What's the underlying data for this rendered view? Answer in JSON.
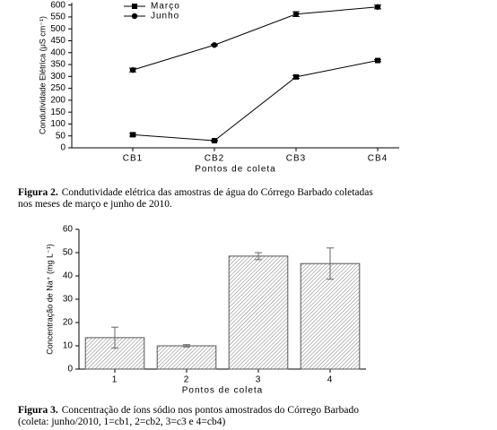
{
  "chart_data": [
    {
      "type": "line",
      "categories": [
        "CB1",
        "CB2",
        "CB3",
        "CB4"
      ],
      "series": [
        {
          "name": "Março",
          "color": "#000000",
          "marker": "square",
          "values": [
            55,
            30,
            298,
            367
          ],
          "errors": [
            6,
            3,
            6,
            4
          ]
        },
        {
          "name": "Junho",
          "color": "#000000",
          "marker": "circle",
          "values": [
            327,
            432,
            562,
            592
          ],
          "errors": [
            8,
            3,
            10,
            8
          ]
        }
      ],
      "ylim": [
        0,
        610
      ],
      "yticks": [
        0,
        50,
        100,
        150,
        200,
        250,
        300,
        350,
        400,
        450,
        500,
        550,
        600
      ],
      "y_label": "Condutividade Elétrica (μS cm⁻¹)",
      "x_label": "Pontos de coleta",
      "legend": "top-left",
      "caption": {
        "label": "Figura 2.",
        "lines": [
          "Condutividade elétrica das amostras de água do Córrego Barbado coletadas",
          "nos meses de março e junho de 2010."
        ]
      }
    },
    {
      "type": "bar",
      "categories": [
        "1",
        "2",
        "3",
        "4"
      ],
      "values": [
        13.5,
        10,
        48.5,
        45.3
      ],
      "errors": [
        4.5,
        0.5,
        1.5,
        6.7
      ],
      "color": "#7a7a7a",
      "ylim": [
        0,
        60
      ],
      "yticks": [
        0,
        10,
        20,
        30,
        40,
        50,
        60
      ],
      "y_label": "Concentração de Na⁺ (mg L⁻¹)",
      "x_label": "Pontos de coleta",
      "caption": {
        "label": "Figura 3.",
        "lines": [
          "Concentração de íons sódio nos pontos amostrados do Córrego Barbado",
          "(coleta: junho/2010, 1=cb1, 2=cb2, 3=c3 e 4=cb4)"
        ]
      }
    }
  ]
}
